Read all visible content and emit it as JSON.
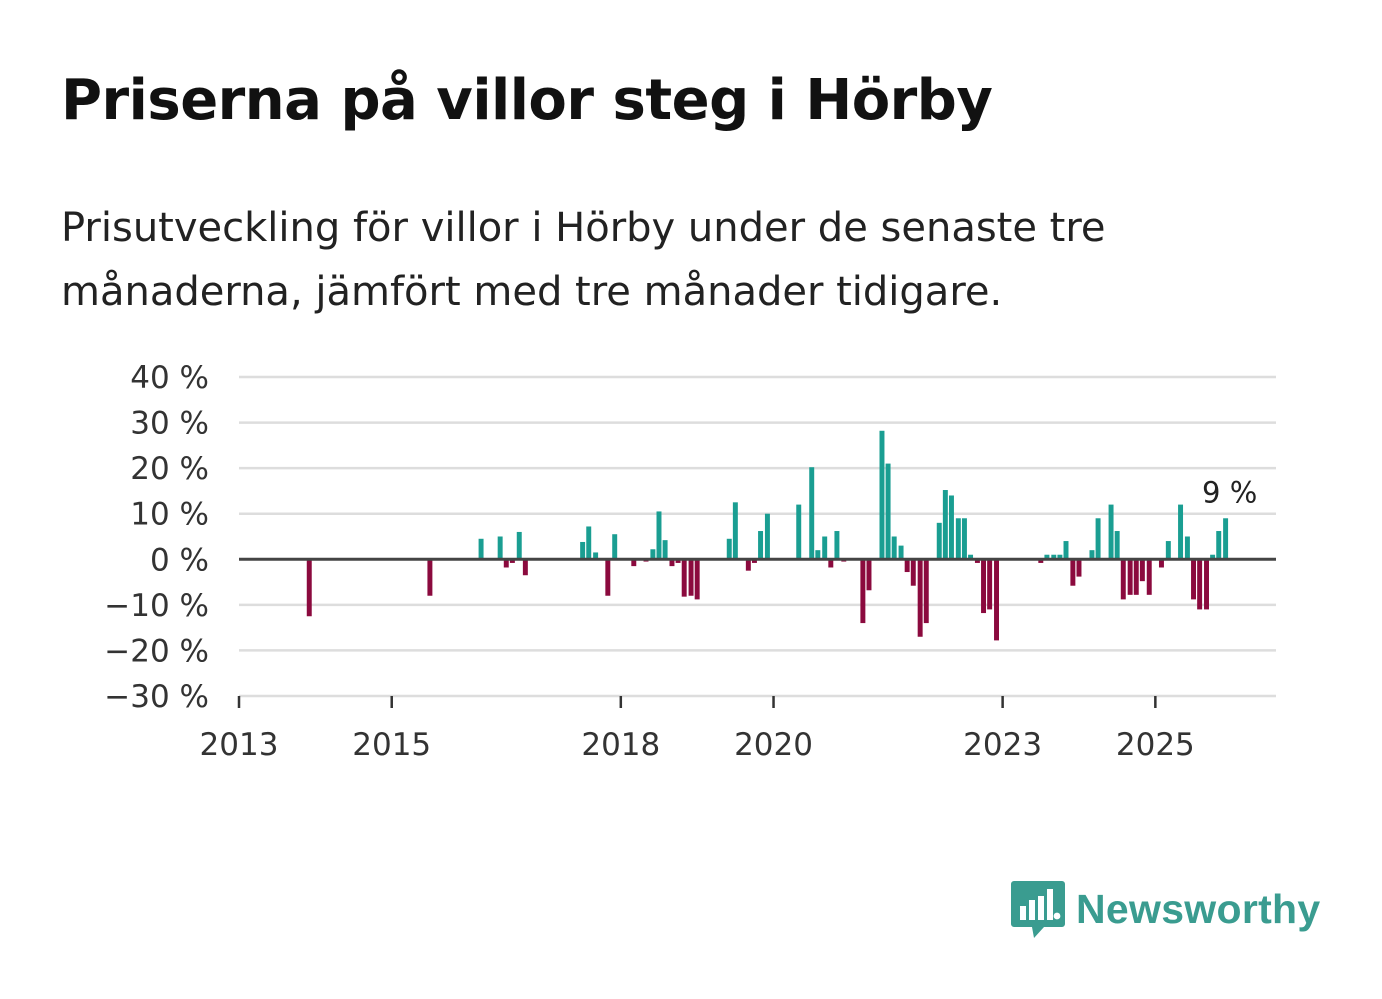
{
  "colors": {
    "positive": "#1a9e92",
    "negative": "#8b0a3e",
    "grid": "#dddddd",
    "zero": "#444444",
    "brand": "#3a9c90"
  },
  "brand": {
    "name": "Newsworthy",
    "icon": "bar-chart-speech-bubble-icon"
  },
  "chart_data": {
    "type": "bar",
    "title": "Priserna på villor steg i Hörby",
    "subtitle": "Prisutveckling för villor i Hörby under de senaste tre månaderna, jämfört med tre månader tidigare.",
    "xlabel": "",
    "ylabel": "",
    "ylim": [
      -30,
      40
    ],
    "xlim": [
      2013.0,
      2026.58
    ],
    "y_ticks": [
      40,
      30,
      20,
      10,
      0,
      -10,
      -20,
      -30
    ],
    "y_tick_labels": [
      "40 %",
      "30 %",
      "20 %",
      "10 %",
      "0 %",
      "−10 %",
      "−20 %",
      "−30 %"
    ],
    "x_ticks": [
      2013,
      2015,
      2018,
      2020,
      2023,
      2025
    ],
    "x_tick_labels": [
      "2013",
      "2015",
      "2018",
      "2020",
      "2023",
      "2025"
    ],
    "annotation": {
      "text": "9 %",
      "x": 2025.79,
      "y": 9
    },
    "grid": true,
    "points": [
      {
        "x": 2013.92,
        "y": -12.5
      },
      {
        "x": 2015.5,
        "y": -8.0
      },
      {
        "x": 2016.17,
        "y": 4.5
      },
      {
        "x": 2016.42,
        "y": 5.0
      },
      {
        "x": 2016.5,
        "y": -1.8
      },
      {
        "x": 2016.58,
        "y": -0.8
      },
      {
        "x": 2016.67,
        "y": 6.0
      },
      {
        "x": 2016.75,
        "y": -3.5
      },
      {
        "x": 2017.5,
        "y": 3.8
      },
      {
        "x": 2017.58,
        "y": 7.2
      },
      {
        "x": 2017.67,
        "y": 1.5
      },
      {
        "x": 2017.83,
        "y": -8.0
      },
      {
        "x": 2017.92,
        "y": 5.5
      },
      {
        "x": 2018.17,
        "y": -1.5
      },
      {
        "x": 2018.33,
        "y": -0.5
      },
      {
        "x": 2018.42,
        "y": 2.2
      },
      {
        "x": 2018.5,
        "y": 10.5
      },
      {
        "x": 2018.58,
        "y": 4.2
      },
      {
        "x": 2018.67,
        "y": -1.5
      },
      {
        "x": 2018.75,
        "y": -0.8
      },
      {
        "x": 2018.83,
        "y": -8.2
      },
      {
        "x": 2018.92,
        "y": -8.0
      },
      {
        "x": 2019.0,
        "y": -8.8
      },
      {
        "x": 2019.42,
        "y": 4.5
      },
      {
        "x": 2019.5,
        "y": 12.5
      },
      {
        "x": 2019.67,
        "y": -2.5
      },
      {
        "x": 2019.75,
        "y": -0.8
      },
      {
        "x": 2019.83,
        "y": 6.2
      },
      {
        "x": 2019.92,
        "y": 10.0
      },
      {
        "x": 2020.33,
        "y": 12.0
      },
      {
        "x": 2020.5,
        "y": 20.2
      },
      {
        "x": 2020.58,
        "y": 2.0
      },
      {
        "x": 2020.67,
        "y": 5.0
      },
      {
        "x": 2020.75,
        "y": -1.8
      },
      {
        "x": 2020.83,
        "y": 6.2
      },
      {
        "x": 2020.92,
        "y": -0.5
      },
      {
        "x": 2021.17,
        "y": -14.0
      },
      {
        "x": 2021.25,
        "y": -6.8
      },
      {
        "x": 2021.42,
        "y": 28.2
      },
      {
        "x": 2021.5,
        "y": 21.0
      },
      {
        "x": 2021.58,
        "y": 5.0
      },
      {
        "x": 2021.67,
        "y": 3.0
      },
      {
        "x": 2021.75,
        "y": -2.8
      },
      {
        "x": 2021.83,
        "y": -5.8
      },
      {
        "x": 2021.92,
        "y": -17.0
      },
      {
        "x": 2022.0,
        "y": -14.0
      },
      {
        "x": 2022.17,
        "y": 8.0
      },
      {
        "x": 2022.25,
        "y": 15.2
      },
      {
        "x": 2022.33,
        "y": 14.0
      },
      {
        "x": 2022.42,
        "y": 9.0
      },
      {
        "x": 2022.5,
        "y": 9.0
      },
      {
        "x": 2022.58,
        "y": 1.0
      },
      {
        "x": 2022.67,
        "y": -0.8
      },
      {
        "x": 2022.75,
        "y": -11.8
      },
      {
        "x": 2022.83,
        "y": -11.0
      },
      {
        "x": 2022.92,
        "y": -17.8
      },
      {
        "x": 2023.5,
        "y": -0.8
      },
      {
        "x": 2023.58,
        "y": 1.0
      },
      {
        "x": 2023.67,
        "y": 1.0
      },
      {
        "x": 2023.75,
        "y": 1.0
      },
      {
        "x": 2023.83,
        "y": 4.0
      },
      {
        "x": 2023.92,
        "y": -5.8
      },
      {
        "x": 2024.0,
        "y": -3.8
      },
      {
        "x": 2024.17,
        "y": 2.0
      },
      {
        "x": 2024.25,
        "y": 9.0
      },
      {
        "x": 2024.42,
        "y": 12.0
      },
      {
        "x": 2024.5,
        "y": 6.2
      },
      {
        "x": 2024.58,
        "y": -8.8
      },
      {
        "x": 2024.67,
        "y": -7.8
      },
      {
        "x": 2024.75,
        "y": -7.8
      },
      {
        "x": 2024.83,
        "y": -4.8
      },
      {
        "x": 2024.92,
        "y": -7.8
      },
      {
        "x": 2025.08,
        "y": -1.8
      },
      {
        "x": 2025.17,
        "y": 4.0
      },
      {
        "x": 2025.33,
        "y": 12.0
      },
      {
        "x": 2025.42,
        "y": 5.0
      },
      {
        "x": 2025.5,
        "y": -8.8
      },
      {
        "x": 2025.58,
        "y": -11.0
      },
      {
        "x": 2025.67,
        "y": -11.0
      },
      {
        "x": 2025.75,
        "y": 1.0
      },
      {
        "x": 2025.83,
        "y": 6.2
      },
      {
        "x": 2025.92,
        "y": 9.0
      }
    ]
  }
}
